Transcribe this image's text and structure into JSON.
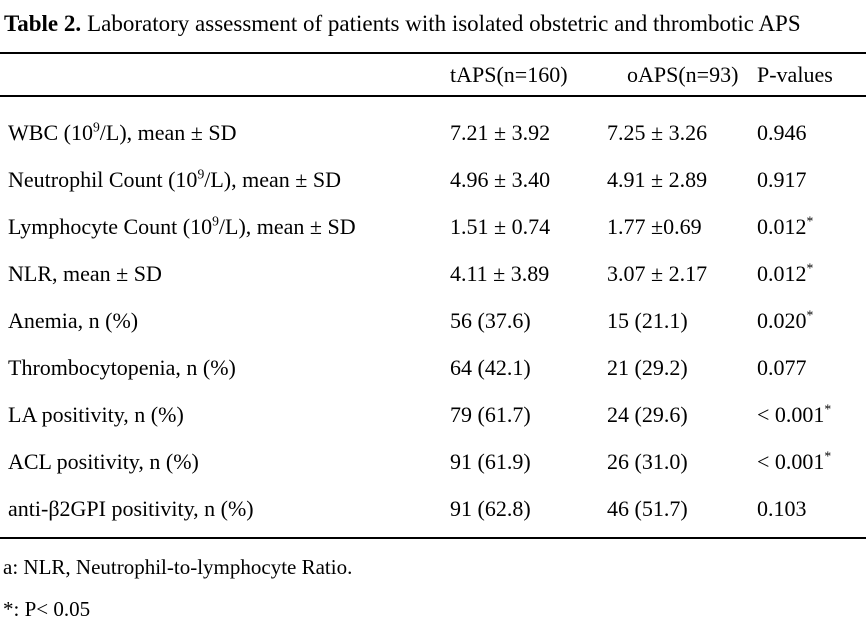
{
  "caption": {
    "label": "Table 2.",
    "text": "Laboratory assessment of patients with isolated obstetric and thrombotic APS"
  },
  "colors": {
    "text": "#000000",
    "background": "#ffffff",
    "rule": "#000000"
  },
  "table": {
    "columns": [
      "",
      "tAPS(n=160)",
      "oAPS(n=93)",
      "P-values"
    ],
    "rows": [
      {
        "label": [
          "WBC (10",
          "9",
          "/L), mean ± SD"
        ],
        "taps": "7.21 ± 3.92",
        "oaps": "7.25 ± 3.26",
        "p": "0.946",
        "p_sup": ""
      },
      {
        "label": [
          "Neutrophil Count (10",
          "9",
          "/L), mean ± SD"
        ],
        "taps": "4.96 ± 3.40",
        "oaps": "4.91 ± 2.89",
        "p": "0.917",
        "p_sup": ""
      },
      {
        "label": [
          "Lymphocyte Count (10",
          "9",
          "/L), mean ± SD"
        ],
        "taps": "1.51 ± 0.74",
        "oaps": "1.77 ±0.69",
        "p": "0.012",
        "p_sup": "*"
      },
      {
        "label": [
          "NLR, mean ± SD",
          "",
          ""
        ],
        "taps": "4.11 ± 3.89",
        "oaps": "3.07 ± 2.17",
        "p": "0.012",
        "p_sup": "*"
      },
      {
        "label": [
          "Anemia, n (%)",
          "",
          ""
        ],
        "taps": "56 (37.6)",
        "oaps": "15 (21.1)",
        "p": "0.020",
        "p_sup": "*"
      },
      {
        "label": [
          "Thrombocytopenia, n (%)",
          "",
          ""
        ],
        "taps": "64 (42.1)",
        "oaps": "21 (29.2)",
        "p": "0.077",
        "p_sup": ""
      },
      {
        "label": [
          "LA positivity, n (%)",
          "",
          ""
        ],
        "taps": "79 (61.7)",
        "oaps": "24 (29.6)",
        "p": "< 0.001",
        "p_sup": "*"
      },
      {
        "label": [
          "ACL positivity, n (%)",
          "",
          ""
        ],
        "taps": "91 (61.9)",
        "oaps": "26 (31.0)",
        "p": "< 0.001",
        "p_sup": "*"
      },
      {
        "label": [
          "anti-β2GPI positivity, n (%)",
          "",
          ""
        ],
        "taps": "91 (62.8)",
        "oaps": "46 (51.7)",
        "p": "0.103",
        "p_sup": ""
      }
    ]
  },
  "footnotes": [
    "a: NLR, Neutrophil-to-lymphocyte Ratio.",
    "*: P< 0.05"
  ]
}
